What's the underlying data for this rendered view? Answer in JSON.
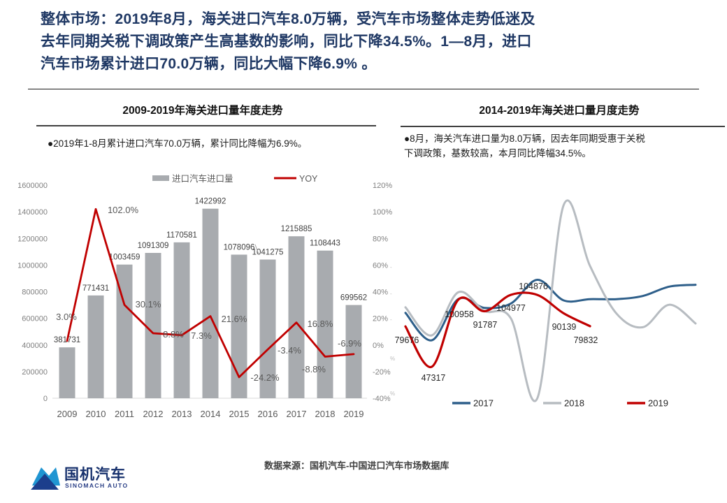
{
  "header": {
    "lines": [
      "整体市场：2019年8月，海关进口汽车8.0万辆，受汽车市场整体走势低迷及",
      "去年同期关税下调政策产生高基数的影响，同比下降34.5%。1—8月，进口",
      "汽车市场累计进口70.0万辆，同比大幅下降6.9% 。"
    ]
  },
  "left_panel": {
    "title": "2009-2019年海关进口量年度走势",
    "subtitle": "●2019年1-8月累计进口汽车70.0万辆，累计同比降幅为6.9%。"
  },
  "right_panel": {
    "title": "2014-2019年海关进口量月度走势",
    "subtitle_line1": "●8月，海关汽车进口量为8.0万辆，因去年同期受惠于关税",
    "subtitle_line2": "下调政策，基数较高，本月同比降幅34.5%。",
    "axis_fragments": [
      "-",
      "-",
      "-",
      "%",
      "%"
    ]
  },
  "footer": {
    "logo_cn": "国机汽车",
    "logo_en": "SINOMACH AUTO",
    "source": "数据来源：国机汽车-中国进口汽车市场数据库"
  },
  "colors": {
    "header_text": "#1f3864",
    "bar": "#a8abaf",
    "yoy": "#c00000",
    "y2017": "#2e5f8a",
    "y2018": "#b7bcc1",
    "y2019": "#c00000",
    "axis_text": "#808080",
    "category_text": "#595959",
    "value_label": "#404040",
    "logo_light": "#2095d2",
    "logo_dark": "#1c3e8c"
  },
  "chart_data": [
    {
      "type": "bar",
      "title": "2009-2019年海关进口量年度走势",
      "categories": [
        "2009",
        "2010",
        "2011",
        "2012",
        "2013",
        "2014",
        "2015",
        "2016",
        "2017",
        "2018",
        "2019"
      ],
      "series": [
        {
          "name": "进口汽车进口量",
          "type": "bar",
          "axis": "left",
          "values": [
            381731,
            771431,
            1003459,
            1091309,
            1170581,
            1422992,
            1078096,
            1041275,
            1215885,
            1108443,
            699562
          ]
        },
        {
          "name": "YOY",
          "type": "line",
          "axis": "right",
          "values": [
            3.0,
            102.0,
            30.1,
            8.8,
            7.3,
            21.6,
            -24.2,
            -3.4,
            16.8,
            -8.8,
            -6.9
          ],
          "labels": [
            "3.0%",
            "102.0%",
            "30.1%",
            "8.8%",
            "7.3%",
            "21.6%",
            "-24.2%",
            "-3.4%",
            "16.8%",
            "-8.8%",
            "-6.9%"
          ]
        }
      ],
      "left_axis": {
        "min": 0,
        "max": 1600000,
        "step": 200000,
        "tick_labels": [
          "0",
          "200000",
          "400000",
          "600000",
          "800000",
          "1000000",
          "1200000",
          "1400000",
          "1600000"
        ]
      },
      "right_axis": {
        "min": -40,
        "max": 120,
        "step": 20,
        "tick_labels": [
          "-40%",
          "-20%",
          "0%",
          "20%",
          "40%",
          "60%",
          "80%",
          "100%",
          "120%"
        ]
      },
      "grid": false,
      "legend_position": "top"
    },
    {
      "type": "line",
      "title": "2014-2019年海关进口量月度走势",
      "x": [
        1,
        2,
        3,
        4,
        5,
        6,
        7,
        8,
        9,
        10,
        11,
        12
      ],
      "smooth": true,
      "grid": false,
      "legend_position": "bottom",
      "series": [
        {
          "name": "2017",
          "values": [
            90500,
            68500,
            101500,
            94500,
            98000,
            117000,
            100500,
            101500,
            101500,
            104000,
            111500,
            113000
          ]
        },
        {
          "name": "2018",
          "values": [
            95000,
            72500,
            107000,
            92000,
            86000,
            22000,
            177000,
            128000,
            90000,
            79000,
            97000,
            82000
          ]
        },
        {
          "name": "2019",
          "values": [
            79676,
            47317,
            100958,
            91787,
            104977,
            104876,
            90139,
            79832
          ],
          "labels": [
            "79676",
            "47317",
            "100958",
            "91787",
            "104977",
            "104876",
            "90139",
            "79832"
          ]
        }
      ]
    }
  ]
}
